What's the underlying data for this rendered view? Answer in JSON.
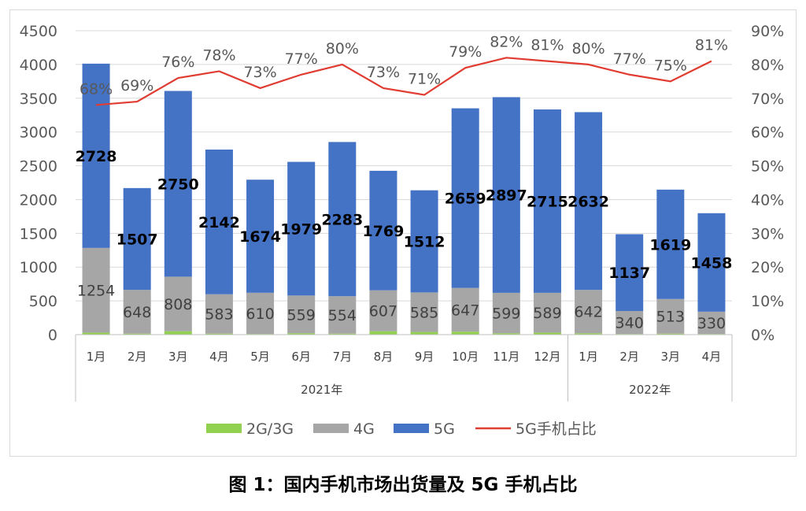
{
  "caption": "图 1：国内手机市场出货量及 5G 手机占比",
  "chart_data": {
    "type": "bar",
    "stacked": true,
    "categories": [
      "1月",
      "2月",
      "3月",
      "4月",
      "5月",
      "6月",
      "7月",
      "8月",
      "9月",
      "10月",
      "11月",
      "12月",
      "1月",
      "2月",
      "3月",
      "4月"
    ],
    "year_groups": [
      {
        "label": "2021年",
        "count": 12
      },
      {
        "label": "2022年",
        "count": 4
      }
    ],
    "series": [
      {
        "name": "2G/3G",
        "color": "#92d050",
        "values": [
          30,
          15,
          50,
          15,
          10,
          20,
          15,
          50,
          40,
          45,
          20,
          30,
          20,
          10,
          15,
          10
        ],
        "show_labels": false
      },
      {
        "name": "4G",
        "color": "#a6a6a6",
        "values": [
          1254,
          648,
          808,
          583,
          610,
          559,
          554,
          607,
          585,
          647,
          599,
          589,
          642,
          340,
          513,
          330
        ],
        "show_labels": true
      },
      {
        "name": "5G",
        "color": "#4472c4",
        "values": [
          2728,
          1507,
          2750,
          2142,
          1674,
          1979,
          2283,
          1769,
          1512,
          2659,
          2897,
          2715,
          2632,
          1137,
          1619,
          1458
        ],
        "show_labels": true
      }
    ],
    "line": {
      "name": "5G手机占比",
      "color": "#e03c31",
      "axis": "right",
      "values": [
        68,
        69,
        76,
        78,
        73,
        77,
        80,
        73,
        71,
        79,
        82,
        81,
        80,
        77,
        75,
        81
      ],
      "labels": [
        "68%",
        "69%",
        "76%",
        "78%",
        "73%",
        "77%",
        "80%",
        "73%",
        "71%",
        "79%",
        "82%",
        "81%",
        "80%",
        "77%",
        "75%",
        "81%"
      ]
    },
    "ylim": [
      0,
      4500
    ],
    "yticks": [
      "0",
      "500",
      "1000",
      "1500",
      "2000",
      "2500",
      "3000",
      "3500",
      "4000",
      "4500"
    ],
    "y2lim": [
      0,
      90
    ],
    "y2ticks": [
      "0%",
      "10%",
      "20%",
      "30%",
      "40%",
      "50%",
      "60%",
      "70%",
      "80%",
      "90%"
    ],
    "grid": true,
    "legend_position": "bottom"
  }
}
